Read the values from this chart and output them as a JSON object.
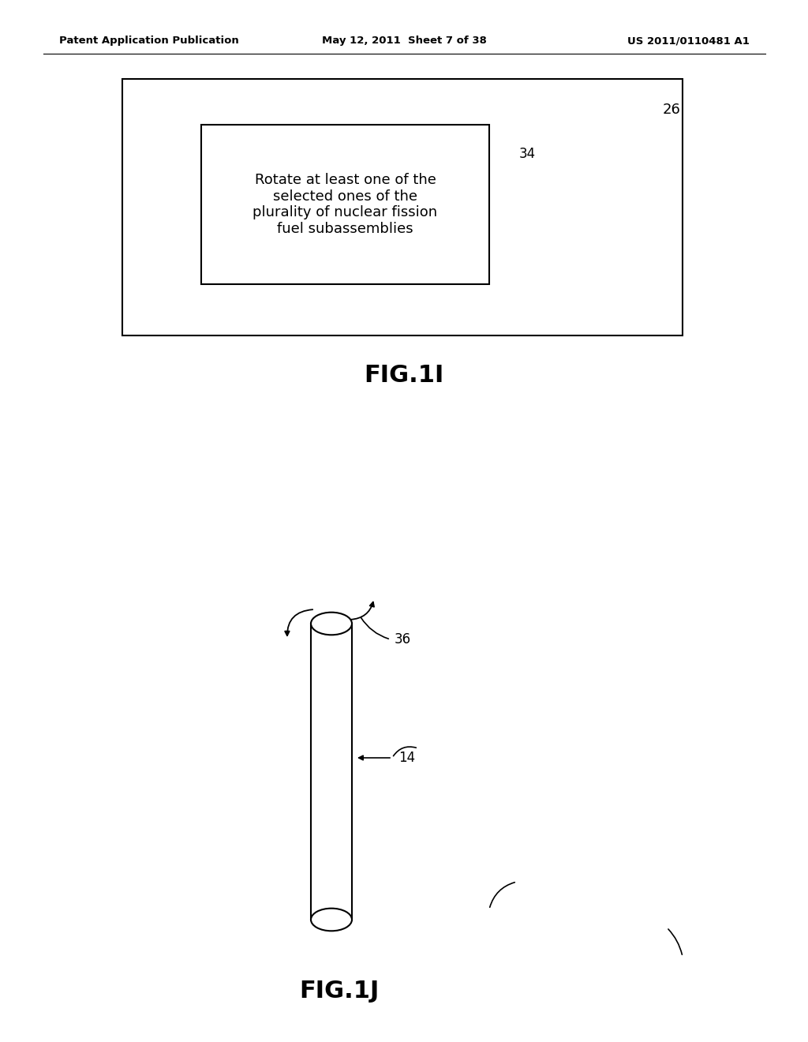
{
  "header_left": "Patent Application Publication",
  "header_mid": "May 12, 2011  Sheet 7 of 38",
  "header_right": "US 2011/0110481 A1",
  "fig1i_label": "FIG.1I",
  "fig1j_label": "FIG.1J",
  "outer_box_label": "26",
  "inner_box_label": "34",
  "inner_text": "Rotate at least one of the\nselected ones of the\nplurality of nuclear fission\nfuel subassemblies",
  "label_36": "36",
  "label_14": "14",
  "background_color": "#ffffff",
  "text_color": "#000000"
}
